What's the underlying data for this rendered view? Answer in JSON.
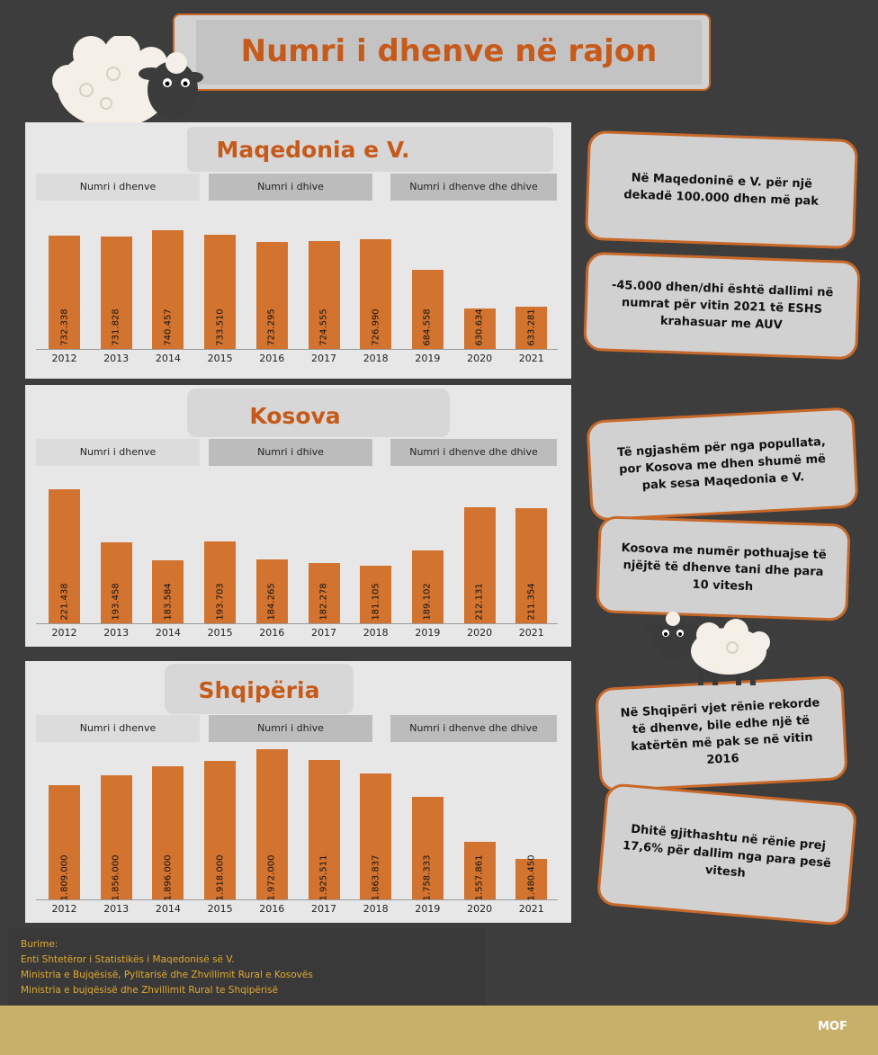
{
  "title": "Numri i dhenve në rajon",
  "colors": {
    "bar": "#d27330",
    "accent": "#c55a1a",
    "background": "#3e3d3d",
    "footer": "#c9b06a",
    "source_text": "#e0a92e"
  },
  "tabs": [
    "Numri i dhenve",
    "Numri i dhive",
    "Numri i dhenve dhe dhive"
  ],
  "chart_data": [
    {
      "type": "bar",
      "title": "Maqedonia e V.",
      "categories": [
        "2012",
        "2013",
        "2014",
        "2015",
        "2016",
        "2017",
        "2018",
        "2019",
        "2020",
        "2021"
      ],
      "values": [
        732338,
        731828,
        740457,
        733510,
        723295,
        724555,
        726990,
        684558,
        630634,
        633281
      ],
      "labels": [
        "732.338",
        "731.828",
        "740.457",
        "733.510",
        "723.295",
        "724.555",
        "726.990",
        "684.558",
        "630.634",
        "633.281"
      ],
      "xlabel": "",
      "ylabel": "",
      "grid": false
    },
    {
      "type": "bar",
      "title": "Kosova",
      "categories": [
        "2012",
        "2013",
        "2014",
        "2015",
        "2016",
        "2017",
        "2018",
        "2019",
        "2020",
        "2021"
      ],
      "values": [
        221438,
        193458,
        183584,
        193703,
        184265,
        182278,
        181105,
        189102,
        212131,
        211354
      ],
      "labels": [
        "221.438",
        "193.458",
        "183.584",
        "193.703",
        "184.265",
        "182.278",
        "181.105",
        "189.102",
        "212.131",
        "211.354"
      ],
      "xlabel": "",
      "ylabel": "",
      "grid": false
    },
    {
      "type": "bar",
      "title": "Shqipëria",
      "categories": [
        "2012",
        "2013",
        "2014",
        "2015",
        "2016",
        "2017",
        "2018",
        "2019",
        "2020",
        "2021"
      ],
      "values": [
        1809000,
        1856000,
        1896000,
        1918000,
        1972000,
        1925511,
        1863837,
        1758333,
        1557861,
        1480450
      ],
      "labels": [
        "1.809.000",
        "1.856.000",
        "1.896.000",
        "1.918.000",
        "1.972.000",
        "1.925.511",
        "1.863.837",
        "1.758.333",
        "1.557.861",
        "1.480.450"
      ],
      "xlabel": "",
      "ylabel": "",
      "grid": false
    }
  ],
  "callouts": [
    "Në Maqedoninë e V. për një dekadë 100.000 dhen më pak",
    "-45.000 dhen/dhi është dallimi në numrat për vitin 2021 të ESHS krahasuar me AUV",
    "Të ngjashëm për nga popullata, por Kosova me dhen shumë më pak sesa Maqedonia e V.",
    "Kosova me numër pothuajse të njëjtë të dhenve tani dhe para 10 vitesh",
    "Në Shqipëri vjet rënie rekorde të dhenve, bile edhe një të katërtën më pak se në vitin 2016",
    "Dhitë gjithashtu në rënie prej 17,6% për dallim nga para pesë vitesh"
  ],
  "sources": {
    "heading": "Burime:",
    "items": [
      "Enti Shtetëror i Statistikës i Maqedonisë së V.",
      "Ministria e Bujqësisë, Pylltarisë dhe Zhvillimit Rural e Kosovës",
      "Ministria e bujqësisë dhe Zhvillimit Rural te Shqipërisë"
    ]
  },
  "logo": "MOF",
  "icons": [
    "sheep-icon",
    "sheep-icon"
  ]
}
